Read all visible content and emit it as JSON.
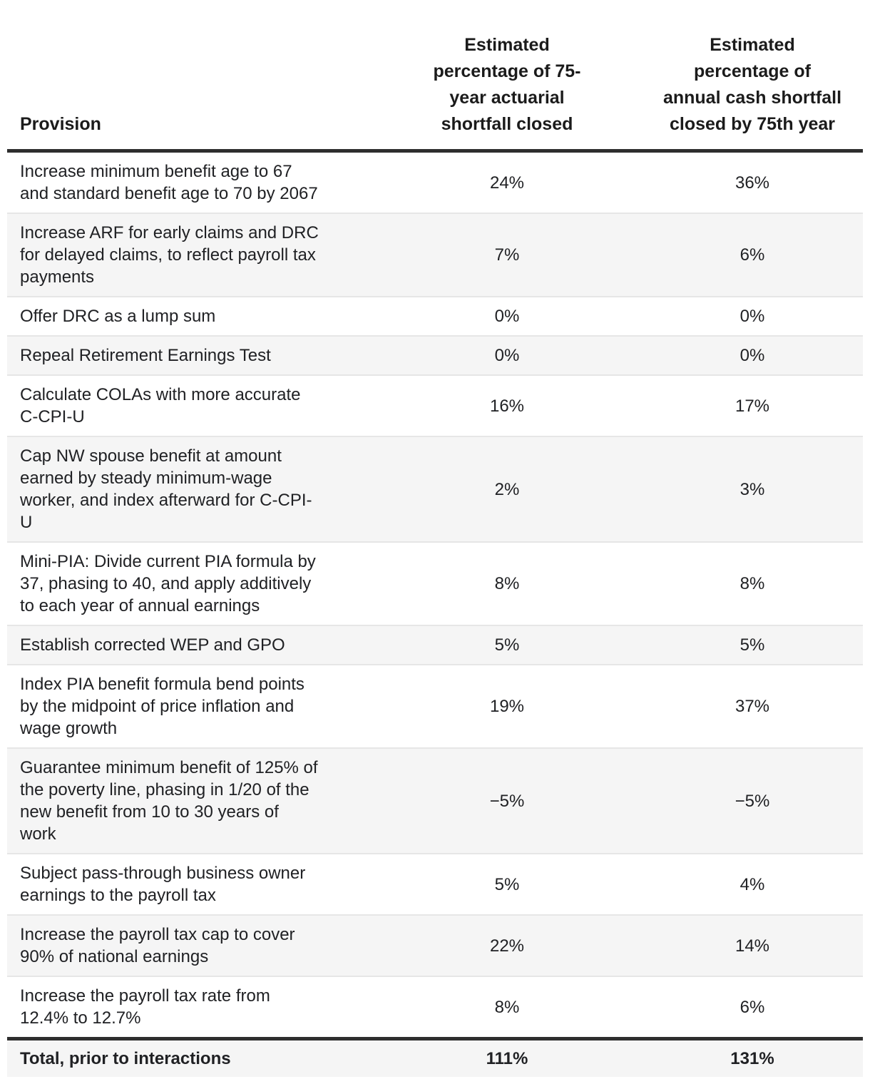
{
  "table": {
    "header": {
      "provision": "Provision",
      "actuarial": "Estimated\npercentage of 75-\nyear actuarial\nshortfall closed",
      "annual": "Estimated\npercentage of\nannual cash shortfall\nclosed by 75th year"
    },
    "rows": [
      {
        "provision": "Increase minimum benefit age to 67\nand standard benefit age to 70 by 2067",
        "actuarial": "24%",
        "annual": "36%"
      },
      {
        "provision": "Increase ARF for early claims and DRC\nfor delayed claims, to reflect payroll tax\npayments",
        "actuarial": "7%",
        "annual": "6%"
      },
      {
        "provision": "Offer DRC as a lump sum",
        "actuarial": "0%",
        "annual": "0%"
      },
      {
        "provision": "Repeal Retirement Earnings Test",
        "actuarial": "0%",
        "annual": "0%"
      },
      {
        "provision": "Calculate COLAs with more accurate\nC-CPI-U",
        "actuarial": "16%",
        "annual": "17%"
      },
      {
        "provision": "Cap NW spouse benefit at amount\nearned by steady minimum-wage\nworker, and index afterward for C-CPI-\nU",
        "actuarial": "2%",
        "annual": "3%"
      },
      {
        "provision": "Mini-PIA: Divide current PIA formula by\n37, phasing to 40, and apply additively\nto each year of annual earnings",
        "actuarial": "8%",
        "annual": "8%"
      },
      {
        "provision": "Establish corrected WEP and GPO",
        "actuarial": "5%",
        "annual": "5%"
      },
      {
        "provision": "Index PIA benefit formula bend points\nby the midpoint of price inflation and\nwage growth",
        "actuarial": "19%",
        "annual": "37%"
      },
      {
        "provision": "Guarantee minimum benefit of 125% of\nthe poverty line, phasing in 1/20 of the\nnew benefit from 10 to 30 years of\nwork",
        "actuarial": "−5%",
        "annual": "−5%"
      },
      {
        "provision": "Subject pass-through business owner\nearnings to the payroll tax",
        "actuarial": "5%",
        "annual": "4%"
      },
      {
        "provision": "Increase the payroll tax cap to cover\n90% of national earnings",
        "actuarial": "22%",
        "annual": "14%"
      },
      {
        "provision": "Increase the payroll tax rate from\n12.4% to 12.7%",
        "actuarial": "8%",
        "annual": "6%"
      }
    ],
    "total": {
      "provision": "Total, prior to interactions",
      "actuarial": "111%",
      "annual": "131%"
    }
  },
  "colors": {
    "stripe": "#f5f5f5",
    "row_rule": "#e6e6e6",
    "heavy_rule": "#2e2e2e",
    "text": "#202124"
  },
  "chart_data": {
    "type": "table",
    "title": "",
    "columns": [
      "Provision",
      "Estimated percentage of 75-year actuarial shortfall closed",
      "Estimated percentage of annual cash shortfall closed by 75th year"
    ],
    "categories": [
      "Increase minimum benefit age to 67 and standard benefit age to 70 by 2067",
      "Increase ARF for early claims and DRC for delayed claims, to reflect payroll tax payments",
      "Offer DRC as a lump sum",
      "Repeal Retirement Earnings Test",
      "Calculate COLAs with more accurate C-CPI-U",
      "Cap NW spouse benefit at amount earned by steady minimum-wage worker, and index afterward for C-CPI-U",
      "Mini-PIA: Divide current PIA formula by 37, phasing to 40, and apply additively to each year of annual earnings",
      "Establish corrected WEP and GPO",
      "Index PIA benefit formula bend points by the midpoint of price inflation and wage growth",
      "Guarantee minimum benefit of 125% of the poverty line, phasing in 1/20 of the new benefit from 10 to 30 years of work",
      "Subject pass-through business owner earnings to the payroll tax",
      "Increase the payroll tax cap to cover 90% of national earnings",
      "Increase the payroll tax rate from 12.4% to 12.7%"
    ],
    "series": [
      {
        "name": "Estimated percentage of 75-year actuarial shortfall closed",
        "values": [
          24,
          7,
          0,
          0,
          16,
          2,
          8,
          5,
          19,
          -5,
          5,
          22,
          8
        ],
        "unit": "%"
      },
      {
        "name": "Estimated percentage of annual cash shortfall closed by 75th year",
        "values": [
          36,
          6,
          0,
          0,
          17,
          3,
          8,
          5,
          37,
          -5,
          4,
          14,
          6
        ],
        "unit": "%"
      }
    ],
    "total_row": {
      "label": "Total, prior to interactions",
      "values": [
        111,
        131
      ],
      "unit": "%"
    }
  }
}
